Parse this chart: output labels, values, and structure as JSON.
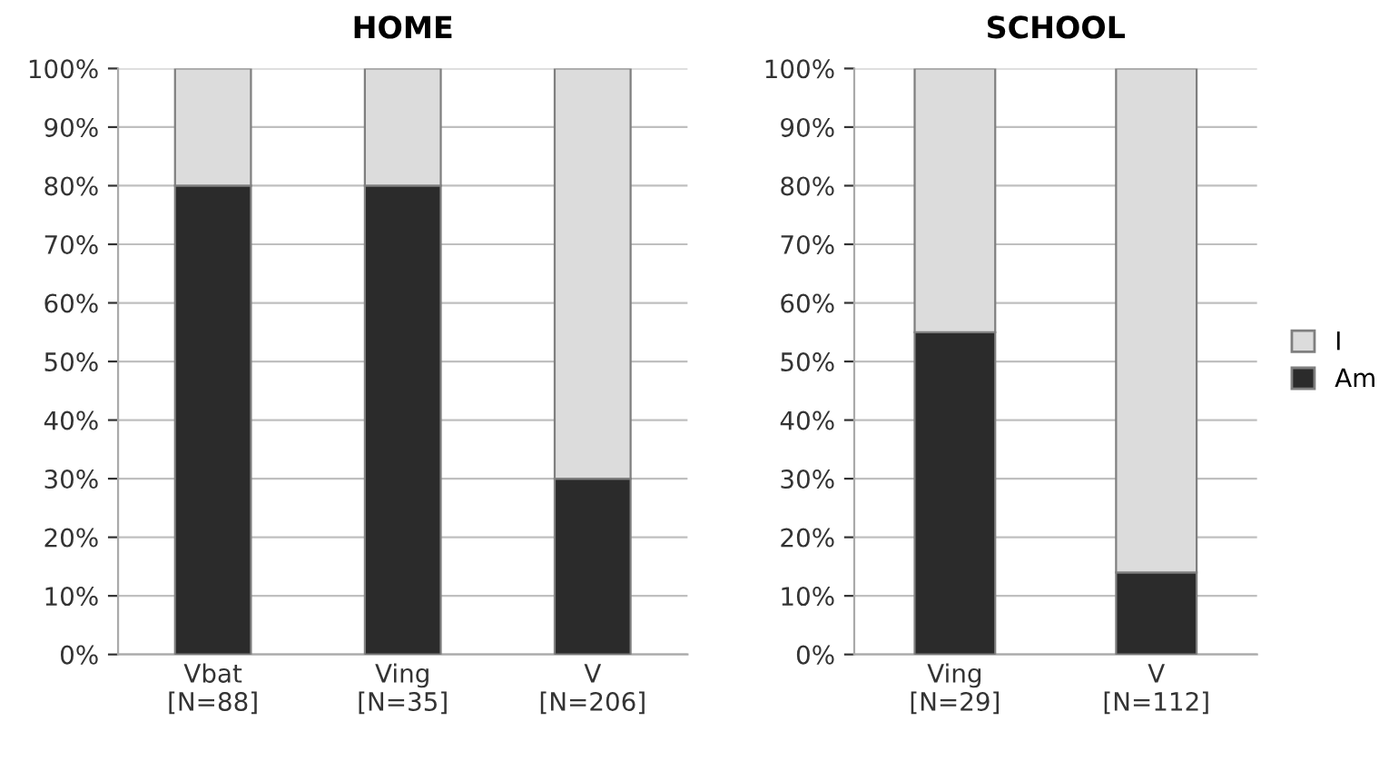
{
  "chart_data": [
    {
      "type": "bar",
      "title": "HOME",
      "stacked": true,
      "categories": [
        "Vbat\n[N=88]",
        "Ving\n[N=35]",
        "V\n[N=206]"
      ],
      "series": [
        {
          "color": "#2b2b2b",
          "values": [
            80,
            80,
            30
          ]
        },
        {
          "color": "#dcdcdc",
          "values": [
            20,
            20,
            70
          ]
        }
      ],
      "ylim": [
        0,
        100
      ],
      "yticks": [
        {
          "value": 0,
          "label": "0%"
        },
        {
          "value": 10,
          "label": "10%"
        },
        {
          "value": 20,
          "label": "20%"
        },
        {
          "value": 30,
          "label": "30%"
        },
        {
          "value": 40,
          "label": "40%"
        },
        {
          "value": 50,
          "label": "50%"
        },
        {
          "value": 60,
          "label": "60%"
        },
        {
          "value": 70,
          "label": "70%"
        },
        {
          "value": 80,
          "label": "80%"
        },
        {
          "value": 90,
          "label": "90%"
        },
        {
          "value": 100,
          "label": "100%"
        }
      ],
      "grid": "y"
    },
    {
      "type": "bar",
      "title": "SCHOOL",
      "stacked": true,
      "categories": [
        "Ving\n[N=29]",
        "V\n[N=112]"
      ],
      "series": [
        {
          "name": "Am",
          "color": "#2b2b2b",
          "values": [
            55,
            14
          ]
        },
        {
          "name": "I",
          "color": "#dcdcdc",
          "values": [
            45,
            86
          ]
        }
      ],
      "ylim": [
        0,
        100
      ],
      "yticks": [
        {
          "value": 0,
          "label": "0%"
        },
        {
          "value": 10,
          "label": "10%"
        },
        {
          "value": 20,
          "label": "20%"
        },
        {
          "value": 30,
          "label": "30%"
        },
        {
          "value": 40,
          "label": "40%"
        },
        {
          "value": 50,
          "label": "50%"
        },
        {
          "value": 60,
          "label": "60%"
        },
        {
          "value": 70,
          "label": "70%"
        },
        {
          "value": 80,
          "label": "80%"
        },
        {
          "value": 90,
          "label": "90%"
        },
        {
          "value": 100,
          "label": "100%"
        }
      ],
      "grid": "y",
      "legend": "right"
    }
  ]
}
